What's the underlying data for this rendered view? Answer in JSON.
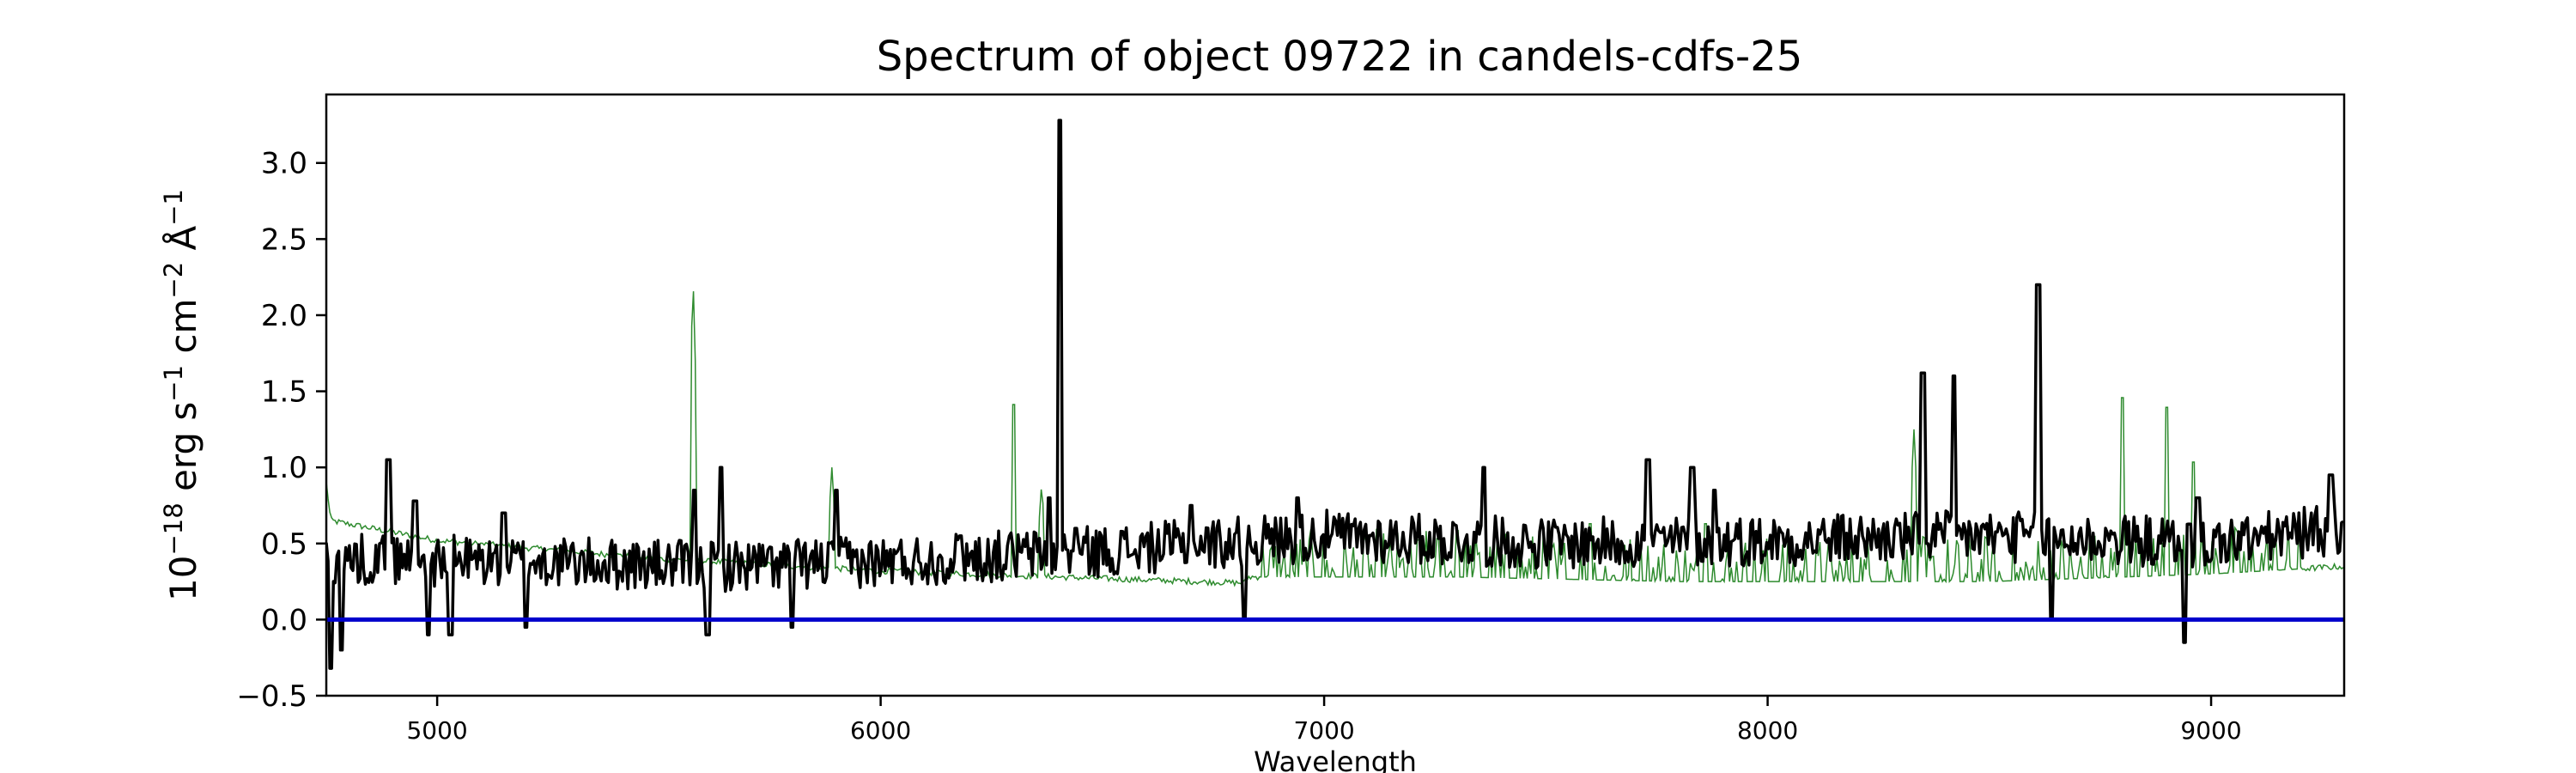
{
  "chart_data": {
    "type": "line",
    "title": "Spectrum of object 09722 in candels-cdfs-25",
    "xlabel": "Wavelength",
    "ylabel": {
      "base": "10",
      "exp": "−18",
      "unit_erg": "erg s",
      "exp_s": "−1",
      "unit_cm": "cm",
      "exp_cm": "−2",
      "unit_A": "Å",
      "exp_A": "−1"
    },
    "xlim": [
      4750,
      9300
    ],
    "ylim": [
      -0.5,
      3.45
    ],
    "xticks": [
      5000,
      6000,
      7000,
      8000,
      9000
    ],
    "xtick_labels": [
      "5000",
      "6000",
      "7000",
      "8000",
      "9000"
    ],
    "yticks": [
      -0.5,
      0.0,
      0.5,
      1.0,
      1.5,
      2.0,
      2.5,
      3.0
    ],
    "ytick_labels": [
      "−0.5",
      "0.0",
      "0.5",
      "1.0",
      "1.5",
      "2.0",
      "2.5",
      "3.0"
    ],
    "grid": false,
    "colors": {
      "flux": "#000000",
      "sky": "#2e8b2e",
      "zero": "#0000cc"
    },
    "series": [
      {
        "role": "flux",
        "continuum": [
          [
            4750,
            0.4
          ],
          [
            5200,
            0.38
          ],
          [
            5600,
            0.35
          ],
          [
            6000,
            0.38
          ],
          [
            6500,
            0.45
          ],
          [
            7000,
            0.55
          ],
          [
            7500,
            0.5
          ],
          [
            8000,
            0.52
          ],
          [
            8500,
            0.55
          ],
          [
            9000,
            0.5
          ],
          [
            9300,
            0.6
          ]
        ],
        "noise_amplitude": 0.17,
        "spikes": [
          [
            4760,
            -0.32
          ],
          [
            4785,
            -0.2
          ],
          [
            4890,
            1.05
          ],
          [
            4950,
            0.78
          ],
          [
            4980,
            -0.1
          ],
          [
            5030,
            -0.1
          ],
          [
            5150,
            0.7
          ],
          [
            5200,
            -0.05
          ],
          [
            5580,
            0.85
          ],
          [
            5610,
            -0.1
          ],
          [
            5640,
            1.0
          ],
          [
            5800,
            -0.05
          ],
          [
            5900,
            0.85
          ],
          [
            6180,
            0.55
          ],
          [
            6380,
            0.8
          ],
          [
            6405,
            3.28
          ],
          [
            6440,
            0.6
          ],
          [
            6700,
            0.75
          ],
          [
            6820,
            0.0
          ],
          [
            6940,
            0.8
          ],
          [
            7360,
            1.0
          ],
          [
            7730,
            1.05
          ],
          [
            7830,
            1.0
          ],
          [
            7880,
            0.85
          ],
          [
            8350,
            1.62
          ],
          [
            8420,
            1.6
          ],
          [
            8610,
            2.2
          ],
          [
            8640,
            0.0
          ],
          [
            8940,
            -0.15
          ],
          [
            8970,
            0.8
          ],
          [
            9270,
            0.95
          ]
        ]
      },
      {
        "role": "sky",
        "continuum": [
          [
            4750,
            0.9
          ],
          [
            4760,
            0.65
          ],
          [
            5000,
            0.52
          ],
          [
            5500,
            0.4
          ],
          [
            6000,
            0.32
          ],
          [
            6500,
            0.27
          ],
          [
            6820,
            0.24
          ],
          [
            6830,
            0.28
          ],
          [
            7300,
            0.28
          ],
          [
            7800,
            0.25
          ],
          [
            8500,
            0.25
          ],
          [
            9000,
            0.3
          ],
          [
            9300,
            0.35
          ]
        ],
        "lines": [
          [
            5577,
            2.27
          ],
          [
            5890,
            1.0
          ],
          [
            6300,
            1.57
          ],
          [
            6363,
            0.9
          ],
          [
            7300,
            0.65
          ],
          [
            7600,
            0.7
          ],
          [
            7860,
            0.7
          ],
          [
            8330,
            1.25
          ],
          [
            8800,
            1.62
          ],
          [
            8900,
            1.55
          ],
          [
            8960,
            1.15
          ]
        ]
      },
      {
        "role": "zero",
        "x": [
          4750,
          9300
        ],
        "y": [
          0,
          0
        ]
      }
    ]
  }
}
